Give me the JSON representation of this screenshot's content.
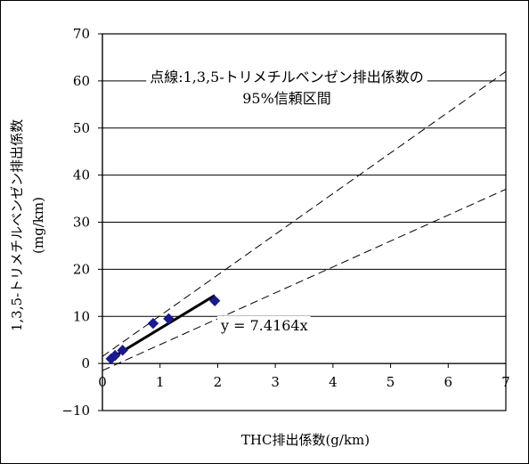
{
  "chart_data": {
    "type": "scatter",
    "title": "",
    "xlabel": "THC排出係数(g/km)",
    "ylabel_lines": [
      "1,3,5-トリメチルベンゼン排出係数",
      "(mg/km)"
    ],
    "xlim": [
      0,
      7
    ],
    "ylim": [
      -10,
      70
    ],
    "x_ticks": [
      "0",
      "1",
      "2",
      "3",
      "4",
      "5",
      "6",
      "7"
    ],
    "y_ticks": [
      "70",
      "60",
      "50",
      "40",
      "30",
      "20",
      "10",
      "0",
      "-10"
    ],
    "grid": "horizontal",
    "legend": "none",
    "points": [
      {
        "x": 0.15,
        "y": 1.0
      },
      {
        "x": 0.22,
        "y": 1.7
      },
      {
        "x": 0.35,
        "y": 2.8
      },
      {
        "x": 0.88,
        "y": 8.5
      },
      {
        "x": 1.15,
        "y": 9.5
      },
      {
        "x": 1.95,
        "y": 13.3
      }
    ],
    "regression": {
      "slope": 7.4164,
      "x_range": [
        0.2,
        1.95
      ]
    },
    "confidence_upper": {
      "x": [
        0,
        7
      ],
      "y": [
        1.5,
        62
      ]
    },
    "confidence_lower": {
      "x": [
        0,
        7
      ],
      "y": [
        -1.5,
        37
      ]
    },
    "regression_label": "y = 7.4164x",
    "annotation_lines": [
      "点線:1,3,5-トリメチルベンゼン排出係数の",
      "95%信頼区間"
    ],
    "colors": {
      "marker": "#1a1a8c",
      "line": "#000000",
      "grid": "#000000"
    }
  }
}
